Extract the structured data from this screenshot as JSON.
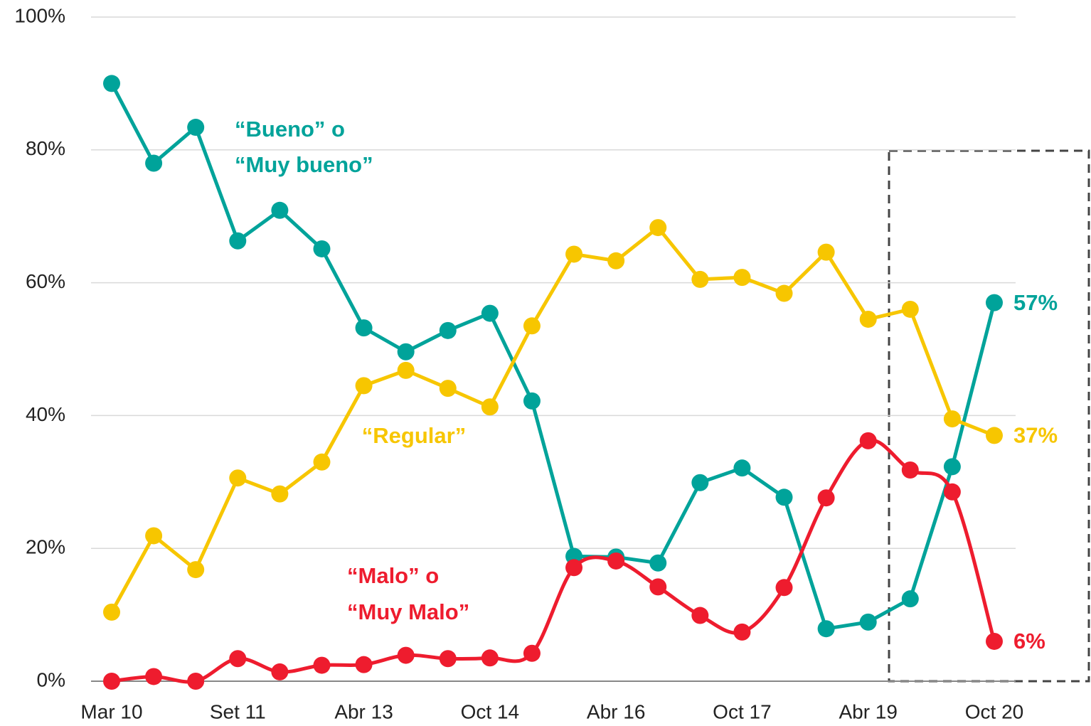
{
  "chart_data": {
    "type": "line",
    "categories": [
      "Mar 10",
      null,
      null,
      "Set 11",
      null,
      null,
      "Abr 13",
      null,
      null,
      "Oct 14",
      null,
      null,
      "Abr 16",
      null,
      null,
      "Oct 17",
      null,
      null,
      "Abr 19",
      null,
      null,
      "Oct 20"
    ],
    "ylim": [
      0,
      100
    ],
    "yticks": [
      {
        "value": 0,
        "label": "0%"
      },
      {
        "value": 20,
        "label": "20%"
      },
      {
        "value": 40,
        "label": "40%"
      },
      {
        "value": 60,
        "label": "60%"
      },
      {
        "value": 80,
        "label": "80%"
      },
      {
        "value": 100,
        "label": "100%"
      }
    ],
    "grid": true,
    "series": [
      {
        "name": [
          "“Bueno” o",
          "“Muy bueno”"
        ],
        "color": "#00a39a",
        "smooth": false,
        "values": [
          90,
          78,
          83.4,
          66.3,
          70.9,
          65.1,
          53.2,
          49.6,
          52.8,
          55.4,
          42.2,
          18.8,
          18.7,
          17.8,
          29.9,
          32.1,
          27.7,
          7.9,
          8.9,
          12.4,
          32.3,
          57
        ],
        "value_labels": [
          null,
          null,
          null,
          null,
          null,
          null,
          null,
          null,
          null,
          null,
          null,
          null,
          null,
          null,
          null,
          null,
          null,
          null,
          null,
          null,
          null,
          "57%"
        ]
      },
      {
        "name": [
          "“Regular”"
        ],
        "color": "#f7c600",
        "smooth": false,
        "values": [
          10.4,
          21.9,
          16.8,
          30.6,
          28.2,
          33,
          44.5,
          46.8,
          44.1,
          41.3,
          53.5,
          64.3,
          63.3,
          68.3,
          60.5,
          60.8,
          58.4,
          64.6,
          54.5,
          56,
          39.5,
          37
        ],
        "value_labels": [
          null,
          null,
          null,
          null,
          null,
          null,
          null,
          null,
          null,
          null,
          null,
          null,
          null,
          null,
          null,
          null,
          null,
          null,
          null,
          null,
          null,
          "37%"
        ]
      },
      {
        "name": [
          "“Malo” o",
          "“Muy Malo”"
        ],
        "color": "#ee1c2e",
        "smooth": true,
        "values": [
          0,
          0.7,
          0,
          3.4,
          1.4,
          2.4,
          2.5,
          3.9,
          3.4,
          3.5,
          4.2,
          17.1,
          18.1,
          14.2,
          9.9,
          7.4,
          14.1,
          27.6,
          36.2,
          31.8,
          28.5,
          6
        ],
        "value_labels": [
          null,
          null,
          null,
          null,
          null,
          null,
          null,
          null,
          null,
          null,
          null,
          null,
          null,
          null,
          null,
          null,
          null,
          null,
          null,
          null,
          null,
          "6%"
        ]
      }
    ]
  }
}
